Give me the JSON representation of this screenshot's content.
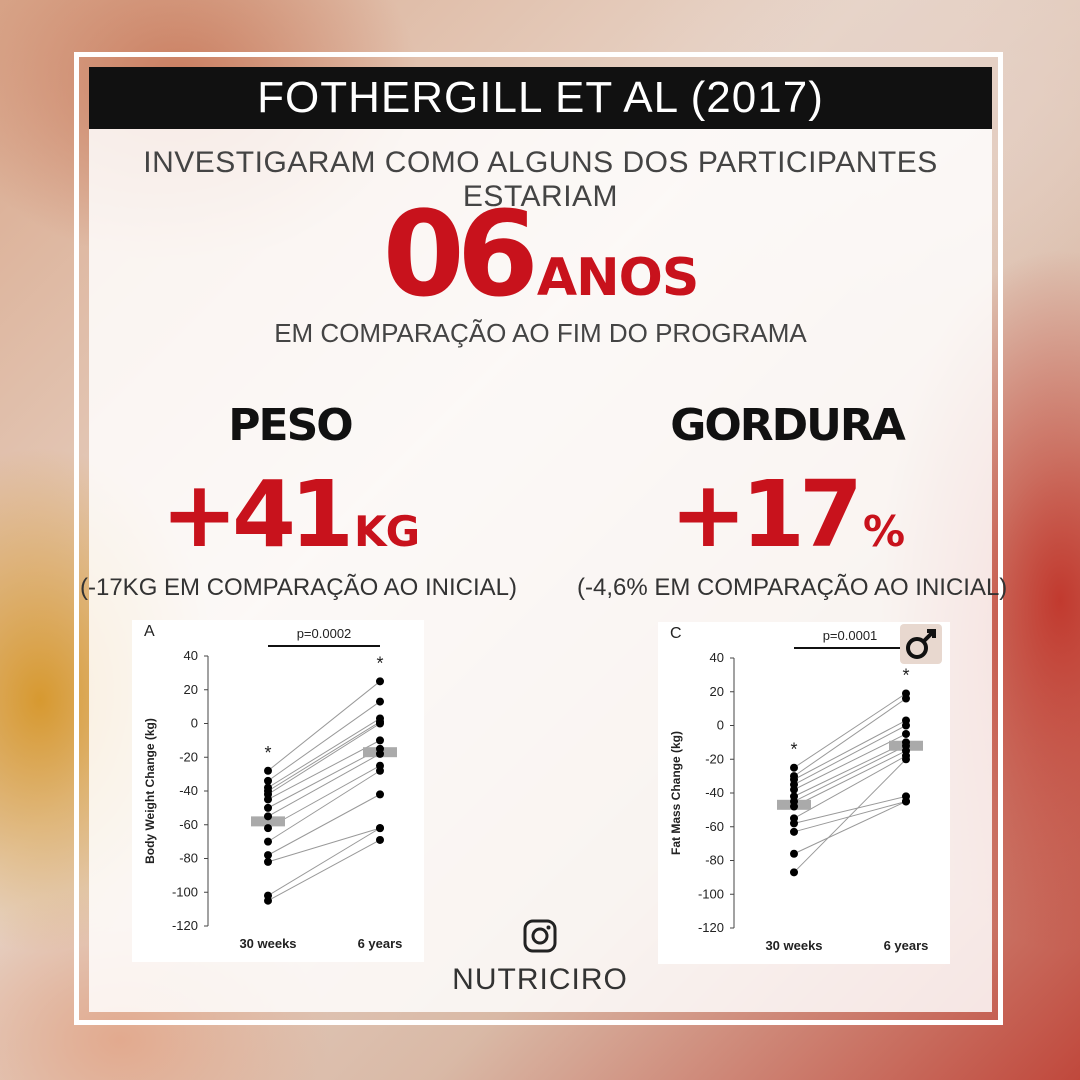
{
  "header": {
    "title": "FOTHERGILL ET AL (2017)"
  },
  "intro": {
    "subtitle": "INVESTIGARAM COMO ALGUNS DOS PARTICIPANTES ESTARIAM",
    "highlight_number": "06",
    "highlight_unit": "ANOS",
    "comparison": "EM COMPARAÇÃO AO FIM DO PROGRAMA"
  },
  "stats": {
    "weight": {
      "label": "PESO",
      "value": "+41",
      "unit": "KG",
      "note": "(-17KG EM COMPARAÇÃO AO INICIAL)"
    },
    "fat": {
      "label": "GORDURA",
      "value": "+17",
      "unit": "%",
      "note": "(-4,6% EM COMPARAÇÃO AO INICIAL)"
    }
  },
  "footer": {
    "handle": "NUTRICIRO",
    "icon": "instagram-icon"
  },
  "colors": {
    "accent": "#c8121c",
    "title_bar": "#111111",
    "mean_bar": "#aaaaaa"
  },
  "chart_data": [
    {
      "type": "scatter",
      "panel_label": "A",
      "ylabel": "Body Weight Change (kg)",
      "categories": [
        "30 weeks",
        "6 years"
      ],
      "ylim": [
        -120,
        40
      ],
      "yticks": [
        40,
        20,
        0,
        -20,
        -40,
        -60,
        -80,
        -100,
        -120
      ],
      "p_value": "p=0.0002",
      "significance": [
        "*",
        "*"
      ],
      "means": [
        -58,
        -17
      ],
      "pairs": [
        [
          -28,
          25
        ],
        [
          -34,
          13
        ],
        [
          -38,
          3
        ],
        [
          -40,
          1
        ],
        [
          -42,
          0
        ],
        [
          -45,
          -10
        ],
        [
          -50,
          -15
        ],
        [
          -55,
          -18
        ],
        [
          -62,
          -25
        ],
        [
          -70,
          -28
        ],
        [
          -78,
          -42
        ],
        [
          -82,
          -62
        ],
        [
          -102,
          -62
        ],
        [
          -105,
          -69
        ]
      ]
    },
    {
      "type": "scatter",
      "panel_label": "C",
      "ylabel": "Fat Mass Change (kg)",
      "categories": [
        "30 weeks",
        "6 years"
      ],
      "ylim": [
        -120,
        40
      ],
      "yticks": [
        40,
        20,
        0,
        -20,
        -40,
        -60,
        -80,
        -100,
        -120
      ],
      "p_value": "p=0.0001",
      "significance": [
        "*",
        "*"
      ],
      "means": [
        -47,
        -12
      ],
      "pairs": [
        [
          -25,
          19
        ],
        [
          -30,
          16
        ],
        [
          -32,
          3
        ],
        [
          -35,
          0
        ],
        [
          -38,
          -5
        ],
        [
          -42,
          -10
        ],
        [
          -45,
          -12
        ],
        [
          -48,
          -15
        ],
        [
          -55,
          -18
        ],
        [
          -58,
          -42
        ],
        [
          -63,
          -45
        ],
        [
          -76,
          -45
        ],
        [
          -87,
          -20
        ]
      ]
    }
  ]
}
